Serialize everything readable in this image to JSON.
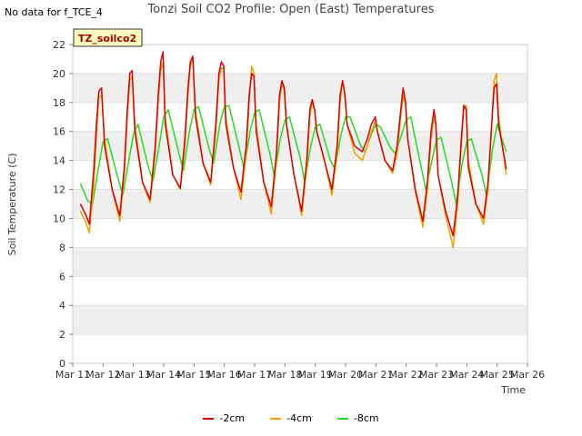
{
  "header": {
    "no_data_text": "No data for f_TCE_4",
    "title": "Tonzi Soil CO2 Profile: Open (East) Temperatures"
  },
  "badge": {
    "label": "TZ_soilco2"
  },
  "chart_data": {
    "type": "line",
    "title": "Tonzi Soil CO2 Profile: Open (East) Temperatures",
    "xlabel": "Time",
    "ylabel": "Soil Temperature (C)",
    "ylim": [
      0,
      22
    ],
    "yticks": [
      0,
      2,
      4,
      6,
      8,
      10,
      12,
      14,
      16,
      18,
      20,
      22
    ],
    "xlim": [
      11,
      26
    ],
    "xtick_labels": [
      "Mar 11",
      "Mar 12",
      "Mar 13",
      "Mar 14",
      "Mar 15",
      "Mar 16",
      "Mar 17",
      "Mar 18",
      "Mar 19",
      "Mar 20",
      "Mar 21",
      "Mar 22",
      "Mar 23",
      "Mar 24",
      "Mar 25",
      "Mar 26"
    ],
    "grid": "horizontal bands",
    "legend_position": "bottom",
    "series": [
      {
        "name": "-2cm",
        "color": "#dd0000",
        "x": [
          11.25,
          11.42,
          11.55,
          11.7,
          11.78,
          11.86,
          11.95,
          12.05,
          12.3,
          12.55,
          12.7,
          12.8,
          12.88,
          12.96,
          13.05,
          13.3,
          13.55,
          13.72,
          13.82,
          13.9,
          13.98,
          14.05,
          14.3,
          14.55,
          14.7,
          14.8,
          14.88,
          14.96,
          15.05,
          15.3,
          15.55,
          15.72,
          15.82,
          15.9,
          15.98,
          16.05,
          16.3,
          16.55,
          16.72,
          16.82,
          16.9,
          16.98,
          17.05,
          17.3,
          17.55,
          17.72,
          17.82,
          17.9,
          17.98,
          18.05,
          18.3,
          18.55,
          18.72,
          18.82,
          18.9,
          18.98,
          19.05,
          19.3,
          19.55,
          19.72,
          19.82,
          19.9,
          19.98,
          20.05,
          20.3,
          20.55,
          20.72,
          20.85,
          20.98,
          21.05,
          21.3,
          21.55,
          21.7,
          21.82,
          21.9,
          21.98,
          22.05,
          22.3,
          22.55,
          22.7,
          22.82,
          22.92,
          22.98,
          23.05,
          23.3,
          23.55,
          23.7,
          23.82,
          23.9,
          23.98,
          24.05,
          24.3,
          24.55,
          24.7,
          24.82,
          24.9,
          24.98,
          25.05,
          25.3
        ],
        "values": [
          11.0,
          10.3,
          9.6,
          13.5,
          16.5,
          18.8,
          19.0,
          15.0,
          12.0,
          10.2,
          13.5,
          17.5,
          20.0,
          20.2,
          16.0,
          12.5,
          11.3,
          15.0,
          18.5,
          20.8,
          21.5,
          16.5,
          13.0,
          12.1,
          15.5,
          19.0,
          20.8,
          21.2,
          17.0,
          13.8,
          12.5,
          16.5,
          20.0,
          20.8,
          20.5,
          16.5,
          13.5,
          11.8,
          15.0,
          18.5,
          20.0,
          19.8,
          16.0,
          12.5,
          10.8,
          14.5,
          18.5,
          19.5,
          19.0,
          16.5,
          13.0,
          10.5,
          14.0,
          17.5,
          18.2,
          17.5,
          16.0,
          14.0,
          12.0,
          15.0,
          18.5,
          19.5,
          18.5,
          16.5,
          15.0,
          14.6,
          15.5,
          16.5,
          17.0,
          16.0,
          14.0,
          13.3,
          15.0,
          17.5,
          19.0,
          18.0,
          15.5,
          12.0,
          9.8,
          12.5,
          16.0,
          17.5,
          16.5,
          13.0,
          10.5,
          8.8,
          11.5,
          15.5,
          17.8,
          17.5,
          13.5,
          11.0,
          10.0,
          12.5,
          16.5,
          19.0,
          19.3,
          16.5,
          13.4
        ]
      },
      {
        "name": "-4cm",
        "color": "#f0a000",
        "x": [
          11.25,
          11.42,
          11.55,
          11.7,
          11.78,
          11.86,
          11.95,
          12.05,
          12.3,
          12.55,
          12.7,
          12.8,
          12.88,
          12.96,
          13.05,
          13.3,
          13.55,
          13.72,
          13.82,
          13.9,
          13.98,
          14.05,
          14.3,
          14.55,
          14.7,
          14.8,
          14.88,
          14.96,
          15.05,
          15.3,
          15.55,
          15.72,
          15.82,
          15.9,
          15.98,
          16.05,
          16.3,
          16.55,
          16.72,
          16.82,
          16.9,
          16.98,
          17.05,
          17.3,
          17.55,
          17.72,
          17.82,
          17.9,
          17.98,
          18.05,
          18.3,
          18.55,
          18.72,
          18.82,
          18.9,
          18.98,
          19.05,
          19.3,
          19.55,
          19.72,
          19.82,
          19.9,
          19.98,
          20.05,
          20.3,
          20.55,
          20.72,
          20.85,
          20.98,
          21.05,
          21.3,
          21.55,
          21.7,
          21.82,
          21.9,
          21.98,
          22.05,
          22.3,
          22.55,
          22.7,
          22.82,
          22.92,
          22.98,
          23.05,
          23.3,
          23.55,
          23.7,
          23.82,
          23.9,
          23.98,
          24.05,
          24.3,
          24.55,
          24.7,
          24.82,
          24.9,
          24.98,
          25.05,
          25.3
        ],
        "values": [
          10.5,
          9.8,
          9.0,
          12.5,
          15.5,
          18.3,
          18.5,
          15.5,
          12.0,
          9.8,
          13.0,
          17.0,
          19.5,
          19.8,
          16.5,
          12.5,
          11.1,
          14.5,
          18.0,
          20.2,
          20.8,
          17.0,
          13.0,
          12.0,
          15.0,
          18.5,
          20.5,
          21.0,
          17.5,
          13.8,
          12.3,
          16.0,
          19.5,
          20.4,
          20.3,
          17.0,
          13.5,
          11.3,
          14.5,
          18.0,
          20.5,
          20.0,
          16.5,
          12.5,
          10.3,
          14.0,
          18.0,
          19.3,
          18.8,
          16.5,
          13.0,
          10.2,
          13.5,
          17.0,
          18.0,
          17.5,
          16.0,
          14.0,
          11.6,
          14.5,
          18.0,
          19.5,
          18.5,
          16.5,
          14.5,
          14.0,
          15.0,
          16.0,
          16.7,
          16.0,
          14.0,
          13.1,
          14.5,
          17.0,
          18.5,
          17.8,
          15.5,
          11.8,
          9.4,
          12.0,
          15.5,
          17.0,
          16.5,
          13.0,
          10.2,
          8.0,
          11.0,
          15.0,
          17.5,
          17.8,
          14.0,
          11.0,
          9.6,
          12.0,
          16.5,
          19.5,
          20.0,
          17.0,
          13.0
        ]
      },
      {
        "name": "-8cm",
        "color": "#22dd22",
        "x": [
          11.25,
          11.5,
          11.65,
          11.85,
          12.0,
          12.15,
          12.5,
          12.65,
          12.85,
          13.0,
          13.15,
          13.5,
          13.65,
          13.85,
          14.0,
          14.15,
          14.5,
          14.65,
          14.85,
          15.0,
          15.15,
          15.5,
          15.65,
          15.85,
          16.0,
          16.15,
          16.5,
          16.65,
          16.85,
          17.0,
          17.15,
          17.5,
          17.65,
          17.85,
          18.0,
          18.15,
          18.5,
          18.65,
          18.85,
          19.0,
          19.15,
          19.5,
          19.65,
          19.85,
          20.0,
          20.15,
          20.5,
          20.65,
          20.85,
          21.0,
          21.15,
          21.5,
          21.65,
          21.85,
          22.0,
          22.15,
          22.5,
          22.65,
          22.85,
          23.0,
          23.15,
          23.5,
          23.65,
          23.85,
          24.0,
          24.15,
          24.5,
          24.65,
          24.85,
          25.0,
          25.3
        ],
        "values": [
          12.4,
          11.2,
          11.0,
          13.5,
          15.3,
          15.5,
          12.7,
          11.6,
          14.0,
          15.8,
          16.5,
          13.5,
          12.6,
          15.0,
          17.0,
          17.5,
          14.5,
          13.3,
          16.0,
          17.5,
          17.7,
          14.8,
          13.8,
          16.5,
          17.7,
          17.8,
          14.8,
          13.4,
          16.0,
          17.3,
          17.5,
          14.5,
          12.9,
          15.5,
          16.8,
          17.0,
          14.2,
          12.5,
          15.0,
          16.3,
          16.5,
          14.0,
          13.4,
          15.8,
          17.0,
          17.0,
          15.0,
          14.6,
          15.8,
          16.5,
          16.3,
          14.8,
          14.5,
          15.8,
          16.8,
          17.0,
          13.5,
          12.0,
          14.0,
          15.4,
          15.6,
          12.5,
          11.0,
          13.8,
          15.3,
          15.5,
          13.0,
          11.6,
          14.8,
          16.5,
          14.6
        ]
      }
    ]
  }
}
